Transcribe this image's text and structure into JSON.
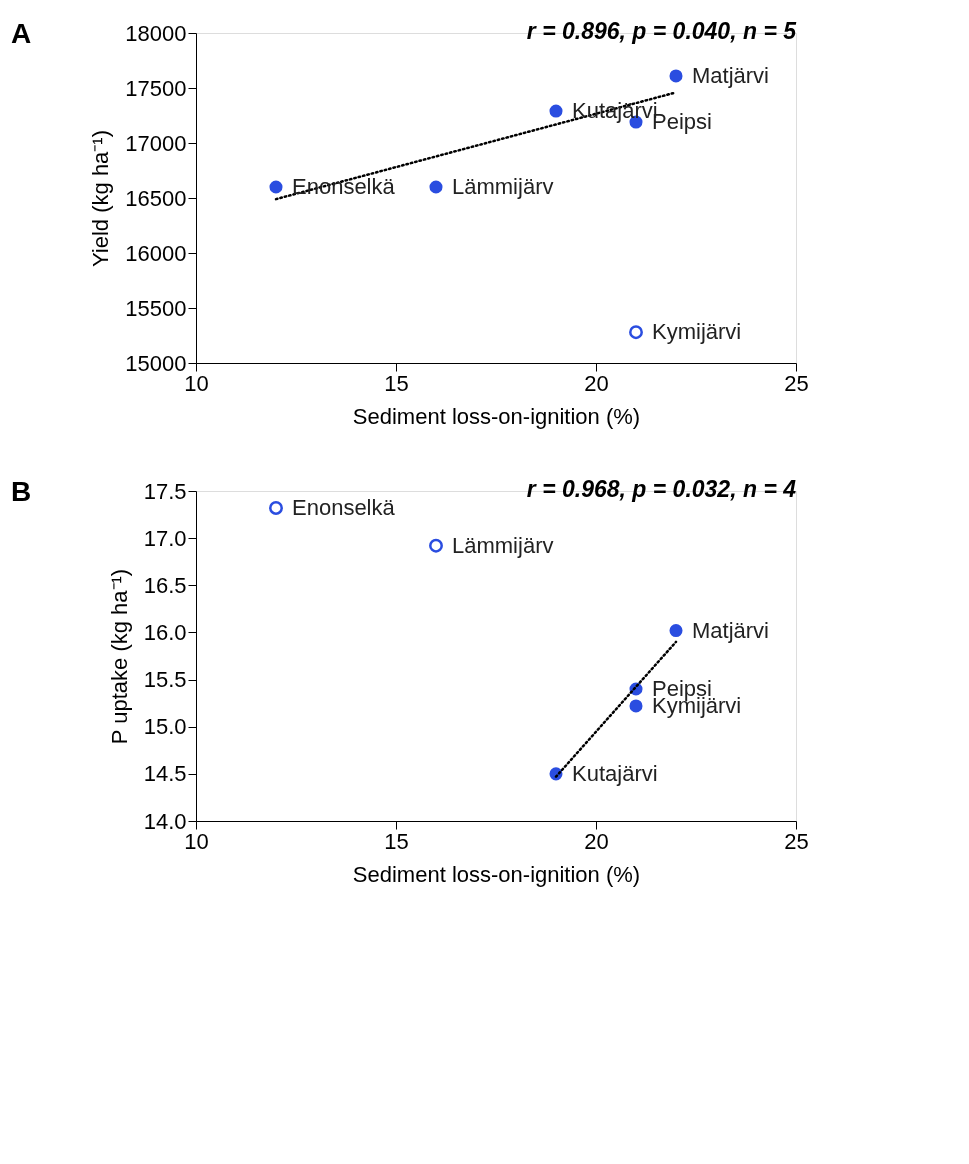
{
  "chart_data": [
    {
      "type": "scatter",
      "xlabel": "Sediment loss-on-ignition (%)",
      "ylabel": "Yield (kg ha⁻¹)",
      "xlim": [
        10,
        25
      ],
      "xticks": [
        10,
        15,
        20,
        25
      ],
      "ylim": [
        15000,
        18000
      ],
      "yticks": [
        15000,
        15500,
        16000,
        16500,
        17000,
        17500,
        18000
      ],
      "grid": false,
      "series": [
        {
          "color": "#2a4de0",
          "x": [
            12,
            16,
            19,
            21,
            22
          ],
          "values": [
            16600,
            16600,
            17290,
            17190,
            17610
          ]
        },
        {
          "color": "#2a4de0",
          "x": [
            21
          ],
          "values": [
            15280
          ]
        },
        {
          "type": "line",
          "color": "#000000",
          "line_style": "dotted",
          "x": [
            12,
            22
          ],
          "values": [
            16490,
            17460
          ]
        }
      ],
      "annotations": [
        "A",
        "r = 0.896, p = 0.040, n = 5",
        {
          "text": "Enonselkä",
          "x": 12,
          "y": 16600
        },
        {
          "text": "Lämmijärv",
          "x": 16,
          "y": 16600
        },
        {
          "text": "Kutajärvi",
          "x": 19,
          "y": 17290
        },
        {
          "text": "Peipsi",
          "x": 21,
          "y": 17190
        },
        {
          "text": "Matjärvi",
          "x": 22,
          "y": 17610
        },
        {
          "text": "Kymijärvi",
          "x": 21,
          "y": 15280
        }
      ]
    },
    {
      "type": "scatter",
      "xlabel": "Sediment loss-on-ignition (%)",
      "ylabel": "P uptake (kg ha⁻¹)",
      "xlim": [
        10,
        25
      ],
      "xticks": [
        10,
        15,
        20,
        25
      ],
      "ylim": [
        14.0,
        17.5
      ],
      "yticks": [
        {
          "value": 14.0,
          "label": "14.0"
        },
        14.5,
        {
          "value": 15.0,
          "label": "15.0"
        },
        15.5,
        {
          "value": 16.0,
          "label": "16.0"
        },
        16.5,
        {
          "value": 17.0,
          "label": "17.0"
        },
        17.5
      ],
      "grid": false,
      "series": [
        {
          "color": "#2a4de0",
          "x": [
            19,
            21,
            21,
            22
          ],
          "values": [
            14.5,
            15.22,
            15.4,
            16.02
          ]
        },
        {
          "color": "#2a4de0",
          "x": [
            12,
            16
          ],
          "values": [
            17.32,
            16.92
          ]
        },
        {
          "type": "line",
          "color": "#000000",
          "line_style": "dotted",
          "x": [
            19,
            22
          ],
          "values": [
            14.47,
            15.9
          ]
        }
      ],
      "annotations": [
        "B",
        "r = 0.968, p = 0.032, n = 4",
        {
          "text": "Enonselkä",
          "x": 12,
          "y": 17.32
        },
        {
          "text": "Lämmijärv",
          "x": 16,
          "y": 16.92
        },
        {
          "text": "Matjärvi",
          "x": 22,
          "y": 16.02
        },
        {
          "text": "Peipsi",
          "x": 21,
          "y": 15.4
        },
        {
          "text": "Kymijärvi",
          "x": 21,
          "y": 15.22
        },
        {
          "text": "Kutajärvi",
          "x": 19,
          "y": 14.5
        }
      ]
    }
  ]
}
